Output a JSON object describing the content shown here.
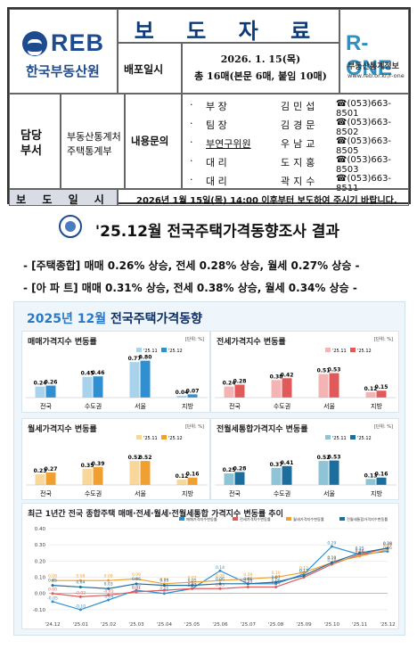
{
  "header": {
    "org_logo": "REB",
    "org_name": "한국부동산원",
    "doc_title": "보 도 자 료",
    "dist_label": "배포일시",
    "dist_date": "2026. 1. 15(목)",
    "dist_pages": "총 16매(본문 6매, 붙임 10매)",
    "rone_logo": "R-ONE",
    "rone_name": "부동산통계정보",
    "rone_url": "www.reb.or.kr/r-one",
    "resp_label": "담당 부서",
    "dept": "부동산통계처 주택통계부",
    "inquiry_label": "내용문의",
    "contacts": [
      {
        "bullet": "·",
        "role": "부       장",
        "name": "김민섭",
        "phone": "☎(053)663-8501"
      },
      {
        "bullet": "·",
        "role": "팀       장",
        "name": "김경문",
        "phone": "☎(053)663-8502"
      },
      {
        "bullet": "·",
        "role": "부연구위원",
        "name": "우남교",
        "phone": "☎(053)663-8505"
      },
      {
        "bullet": "·",
        "role": "대       리",
        "name": "도지홍",
        "phone": "☎(053)663-8503"
      },
      {
        "bullet": "·",
        "role": "대       리",
        "name": "곽지수",
        "phone": "☎(053)663-8511"
      }
    ],
    "release_label": "보 도 일 시",
    "release_text": "2026년 1월 15일(목) 14:00 이후부터 보도하여 주시기 바랍니다."
  },
  "headline": "'25.12월 전국주택가격동향조사 결과",
  "summary": [
    "- [주택종합] 매매 0.26% 상승, 전세 0.28% 상승, 월세 0.27% 상승 -",
    "- [아 파 트] 매매 0.31% 상승, 전세 0.38% 상승, 월세 0.34% 상승 -"
  ],
  "panel": {
    "title_prefix": "2025년 12월",
    "title_rest": "전국주택가격동향"
  },
  "chart_data": [
    {
      "type": "bar",
      "title": "매매가격지수 변동률",
      "unit": "[단위: %]",
      "categories": [
        "전국",
        "수도권",
        "서울",
        "지방"
      ],
      "series": [
        {
          "name": "'25.11",
          "values": [
            0.24,
            0.45,
            0.77,
            0.04
          ]
        },
        {
          "name": "'25.12",
          "values": [
            0.26,
            0.46,
            0.8,
            0.07
          ]
        }
      ],
      "colors": [
        "#a9d3ec",
        "#2f8fd0"
      ]
    },
    {
      "type": "bar",
      "title": "전세가격지수 변동률",
      "unit": "[단위: %]",
      "categories": [
        "전국",
        "수도권",
        "서울",
        "지방"
      ],
      "series": [
        {
          "name": "'25.11",
          "values": [
            0.24,
            0.38,
            0.51,
            0.12
          ]
        },
        {
          "name": "'25.12",
          "values": [
            0.28,
            0.42,
            0.53,
            0.15
          ]
        }
      ],
      "colors": [
        "#f4b4b4",
        "#e05a5a"
      ]
    },
    {
      "type": "bar",
      "title": "월세가격지수 변동률",
      "unit": "[단위: %]",
      "categories": [
        "전국",
        "수도권",
        "서울",
        "지방"
      ],
      "series": [
        {
          "name": "'25.11",
          "values": [
            0.23,
            0.35,
            0.52,
            0.12
          ]
        },
        {
          "name": "'25.12",
          "values": [
            0.27,
            0.39,
            0.52,
            0.16
          ]
        }
      ],
      "colors": [
        "#f7d79a",
        "#f0a030"
      ]
    },
    {
      "type": "bar",
      "title": "전월세통합가격지수 변동률",
      "unit": "[단위: %]",
      "categories": [
        "전국",
        "수도권",
        "서울",
        "지방"
      ],
      "series": [
        {
          "name": "'25.11",
          "values": [
            0.25,
            0.37,
            0.52,
            0.13
          ]
        },
        {
          "name": "'25.12",
          "values": [
            0.28,
            0.41,
            0.53,
            0.16
          ]
        }
      ],
      "colors": [
        "#8fc3d6",
        "#1d6e9c"
      ]
    },
    {
      "type": "line",
      "title": "최근 1년간 전국 종합주택 매매·전세·월세·전월세통합 가격지수 변동률 추이",
      "x": [
        "'24.12",
        "'25.01",
        "'25.02",
        "'25.03",
        "'25.04",
        "'25.05",
        "'25.06",
        "'25.07",
        "'25.08",
        "'25.09",
        "'25.10",
        "'25.11",
        "'25.12"
      ],
      "ylim": [
        -0.15,
        0.4
      ],
      "yticks": [
        -0.1,
        0.0,
        0.1,
        0.2,
        0.3,
        0.4
      ],
      "series": [
        {
          "name": "매매가격지수변동률",
          "color": "#2f8fd0",
          "values": [
            -0.05,
            -0.1,
            -0.04,
            0.02,
            0.0,
            0.03,
            0.14,
            0.06,
            0.06,
            0.12,
            0.29,
            0.24,
            0.26
          ]
        },
        {
          "name": "전세가격지수변동률",
          "color": "#e05a5a",
          "values": [
            0.0,
            -0.02,
            -0.01,
            0.01,
            0.02,
            0.03,
            0.03,
            0.04,
            0.04,
            0.1,
            0.18,
            0.24,
            0.28
          ]
        },
        {
          "name": "월세가격지수변동률",
          "color": "#f0a030",
          "values": [
            0.08,
            0.08,
            0.08,
            0.09,
            0.06,
            0.07,
            0.08,
            0.09,
            0.1,
            0.13,
            0.19,
            0.23,
            0.27
          ]
        },
        {
          "name": "전월세통합가격지수변동률",
          "color": "#1d6e9c",
          "values": [
            0.05,
            0.04,
            0.03,
            0.06,
            0.05,
            0.05,
            0.06,
            0.06,
            0.07,
            0.11,
            0.19,
            0.25,
            0.28
          ]
        }
      ]
    }
  ]
}
